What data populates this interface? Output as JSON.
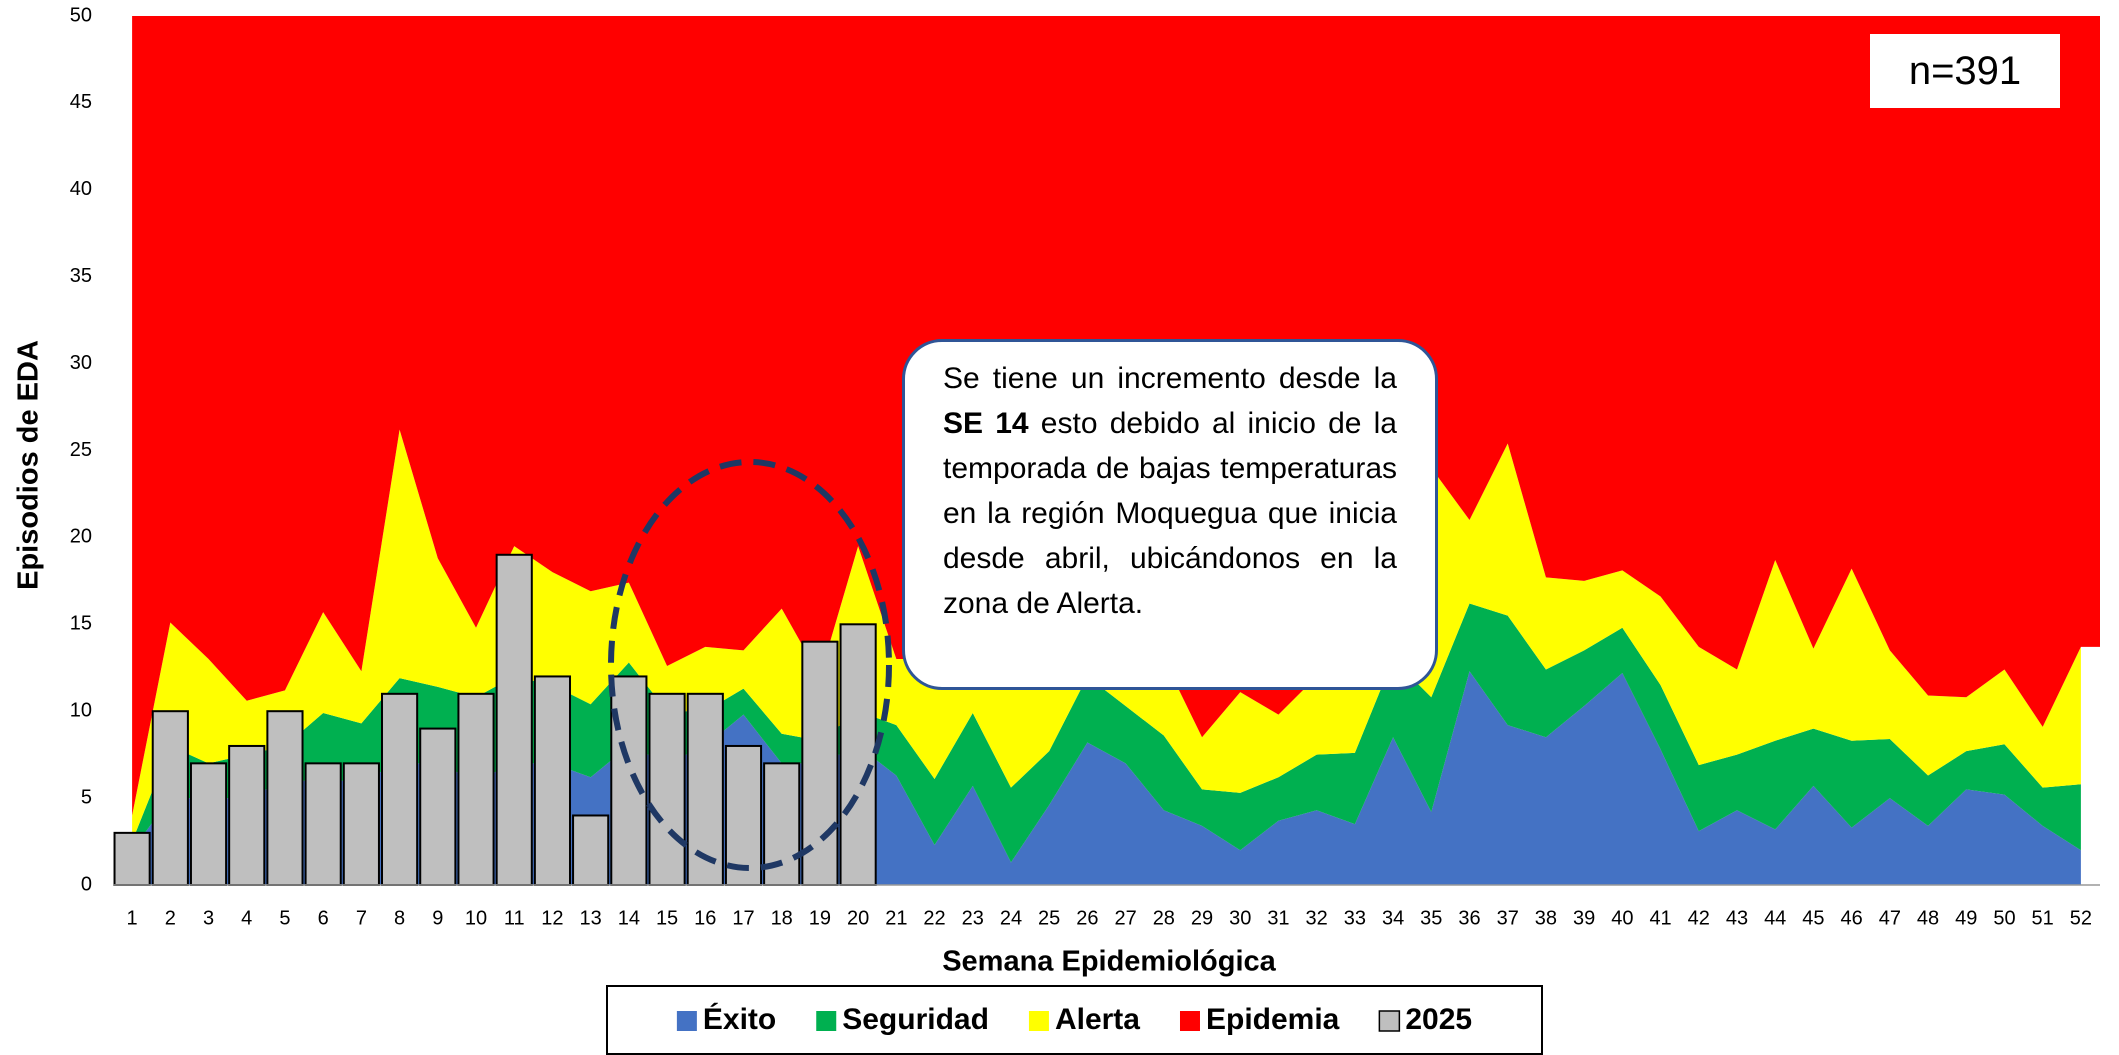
{
  "chart_data": {
    "type": "endemic-channel",
    "x_label": "Semana Epidemiológica",
    "y_label": "Episodios de EDA",
    "annotation": "n=391",
    "callout": [
      "Se tiene un incremento desde la",
      "SE 14",
      "esto debido al inicio de la temporada de bajas temperaturas en la región Moquegua que inicia desde abril, ubicándonos en la zona de Alerta."
    ],
    "categories": [
      "1",
      "2",
      "3",
      "4",
      "5",
      "6",
      "7",
      "8",
      "9",
      "10",
      "11",
      "12",
      "13",
      "14",
      "15",
      "16",
      "17",
      "18",
      "19",
      "20",
      "21",
      "22",
      "23",
      "24",
      "25",
      "26",
      "27",
      "28",
      "29",
      "30",
      "31",
      "32",
      "33",
      "34",
      "35",
      "36",
      "37",
      "38",
      "39",
      "40",
      "41",
      "42",
      "43",
      "44",
      "45",
      "46",
      "47",
      "48",
      "49",
      "50",
      "51",
      "52"
    ],
    "ylim": [
      0,
      50
    ],
    "yticks": [
      0,
      5,
      10,
      15,
      20,
      25,
      30,
      35,
      40,
      45,
      50
    ],
    "grid": false,
    "legend": "bottom",
    "series": [
      {
        "name": "Éxito",
        "color": "#4472c4",
        "kind": "stack",
        "values": [
          2,
          5,
          5,
          5,
          6,
          6,
          6,
          7,
          7,
          6,
          7,
          7,
          6.2,
          8,
          7,
          8,
          9.8,
          7,
          7,
          8,
          6.3,
          2.3,
          5.7,
          1.3,
          4.6,
          8.2,
          7,
          4.3,
          3.4,
          2,
          3.7,
          4.3,
          3.5,
          8.5,
          4.2,
          12.3,
          9.2,
          8.5,
          10.3,
          12.2,
          7.8,
          3.1,
          4.3,
          3.2,
          5.7,
          3.3,
          5,
          3.4,
          5.5,
          5.2,
          3.4,
          2
        ]
      },
      {
        "name": "Seguridad",
        "color": "#00b050",
        "kind": "stack",
        "values": [
          0.5,
          3,
          2,
          2.5,
          2,
          3.9,
          3.3,
          4.9,
          4.4,
          4.8,
          5,
          4.5,
          4.2,
          4.8,
          3,
          2,
          1.5,
          1.7,
          1.3,
          2,
          2.9,
          3.8,
          4.2,
          4.3,
          3.1,
          3.8,
          3.3,
          4.3,
          2.1,
          3.3,
          2.5,
          3.2,
          4.1,
          4.5,
          6.6,
          3.9,
          6.3,
          3.9,
          3.2,
          2.6,
          3.7,
          3.8,
          3.2,
          5.1,
          3.3,
          5,
          3.4,
          2.9,
          2.2,
          2.9,
          2.2,
          3.8
        ]
      },
      {
        "name": "Alerta",
        "color": "#ffff00",
        "kind": "stack",
        "values": [
          1.5,
          7.1,
          6,
          3.1,
          3.2,
          5.8,
          3,
          14.3,
          7.4,
          4,
          7.5,
          6.5,
          6.5,
          4.6,
          2.6,
          3.7,
          2.2,
          7.2,
          3.7,
          9.5,
          3.8,
          6.9,
          3.1,
          6.4,
          5.3,
          1,
          2.7,
          4.4,
          3,
          5.8,
          3.6,
          4.5,
          6.4,
          7,
          13.2,
          4.8,
          9.9,
          5.3,
          4,
          3.3,
          5.1,
          6.8,
          4.9,
          10.4,
          4.6,
          9.9,
          5.1,
          4.6,
          3.1,
          4.3,
          3.5,
          7.9
        ]
      },
      {
        "name": "Epidemia",
        "color": "#ff0000",
        "kind": "rest"
      },
      {
        "name": "2025",
        "color": "#bfbfbf",
        "kind": "bar",
        "values": [
          3,
          10,
          7,
          8,
          10,
          7,
          7,
          11,
          9,
          11,
          19,
          12,
          4,
          12,
          11,
          11,
          8,
          7,
          14,
          15,
          null,
          null,
          null,
          null,
          null,
          null,
          null,
          null,
          null,
          null,
          null,
          null,
          null,
          null,
          null,
          null,
          null,
          null,
          null,
          null,
          null,
          null,
          null,
          null,
          null,
          null,
          null,
          null,
          null,
          null,
          null,
          null
        ]
      }
    ]
  }
}
